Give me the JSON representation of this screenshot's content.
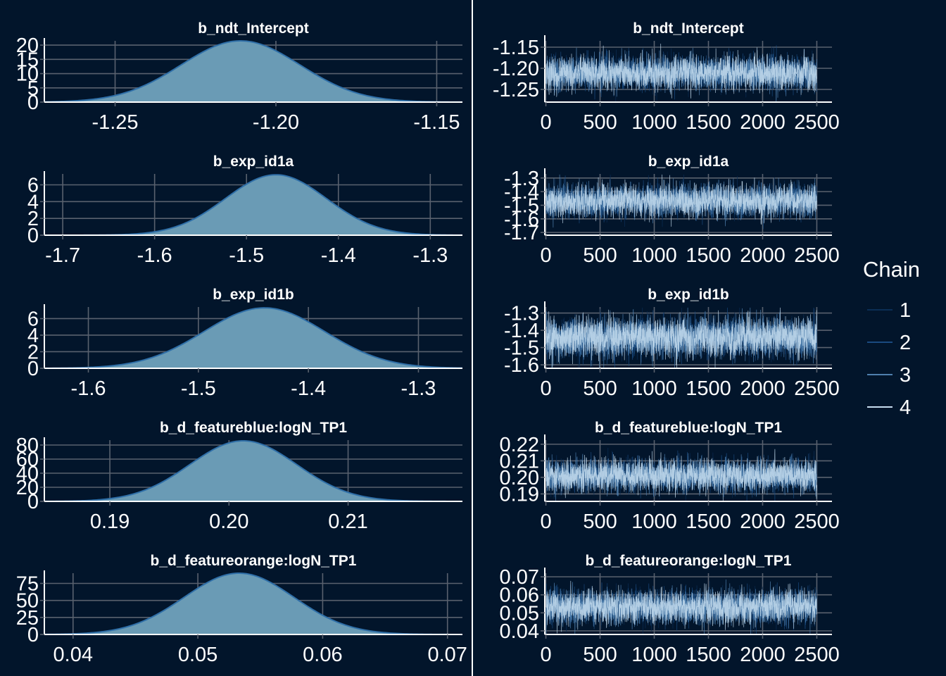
{
  "colors": {
    "background": "#02152b",
    "density_fill": "#6a9bb5",
    "density_line": "#2f6fa8",
    "divider": "#ffffff",
    "grid": "#59616e",
    "text": "#ffffff",
    "chains": [
      "#0b2e55",
      "#1a4a80",
      "#4f7fae",
      "#c7def0"
    ]
  },
  "legend": {
    "title": "Chain",
    "items": [
      {
        "label": "1",
        "color": "#0b2e55"
      },
      {
        "label": "2",
        "color": "#1a4a80"
      },
      {
        "label": "3",
        "color": "#4f7fae"
      },
      {
        "label": "4",
        "color": "#c7def0"
      }
    ]
  },
  "chart_data": [
    {
      "type": "area",
      "panel": "density",
      "title": "b_ndt_Intercept",
      "xticks": [
        -1.25,
        -1.2,
        -1.15
      ],
      "xtick_labels": [
        "-1.25",
        "-1.20",
        "-1.15"
      ],
      "yticks": [
        0,
        5,
        10,
        15,
        20
      ],
      "xlim": [
        -1.272,
        -1.142
      ],
      "ylim": [
        0,
        21.5
      ],
      "mean": -1.211,
      "sd": 0.0185,
      "peak": 21.5
    },
    {
      "type": "line",
      "panel": "trace",
      "title": "b_ndt_Intercept",
      "xticks": [
        0,
        500,
        1000,
        1500,
        2000,
        2500
      ],
      "xtick_labels": [
        "0",
        "500",
        "1000",
        "1500",
        "2000",
        "2500"
      ],
      "yticks": [
        -1.25,
        -1.2,
        -1.15
      ],
      "ytick_labels": [
        "-1.25",
        "-1.20",
        "-1.15"
      ],
      "xlim": [
        -10,
        2640
      ],
      "ylim": [
        -1.28,
        -1.135
      ],
      "mean": -1.211,
      "sd": 0.0185,
      "iterations": 2500,
      "chains": 4
    },
    {
      "type": "area",
      "panel": "density",
      "title": "b_exp_id1a",
      "xticks": [
        -1.7,
        -1.6,
        -1.5,
        -1.4,
        -1.3
      ],
      "xtick_labels": [
        "-1.7",
        "-1.6",
        "-1.5",
        "-1.4",
        "-1.3"
      ],
      "yticks": [
        0,
        2,
        4,
        6
      ],
      "xlim": [
        -1.72,
        -1.265
      ],
      "ylim": [
        0,
        7.3
      ],
      "mean": -1.468,
      "sd": 0.055,
      "peak": 7.2
    },
    {
      "type": "line",
      "panel": "trace",
      "title": "b_exp_id1a",
      "xticks": [
        0,
        500,
        1000,
        1500,
        2000,
        2500
      ],
      "xtick_labels": [
        "0",
        "500",
        "1000",
        "1500",
        "2000",
        "2500"
      ],
      "yticks": [
        -1.7,
        -1.6,
        -1.5,
        -1.4,
        -1.3
      ],
      "ytick_labels": [
        "-1.7",
        "-1.6",
        "-1.5",
        "-1.4",
        "-1.3"
      ],
      "xlim": [
        -10,
        2640
      ],
      "ylim": [
        -1.72,
        -1.27
      ],
      "mean": -1.468,
      "sd": 0.055,
      "iterations": 2500,
      "chains": 4
    },
    {
      "type": "area",
      "panel": "density",
      "title": "b_exp_id1b",
      "xticks": [
        -1.6,
        -1.5,
        -1.4,
        -1.3
      ],
      "xtick_labels": [
        "-1.6",
        "-1.5",
        "-1.4",
        "-1.3"
      ],
      "yticks": [
        0,
        2,
        4,
        6
      ],
      "xlim": [
        -1.64,
        -1.26
      ],
      "ylim": [
        0,
        7.4
      ],
      "mean": -1.44,
      "sd": 0.055,
      "peak": 7.3
    },
    {
      "type": "line",
      "panel": "trace",
      "title": "b_exp_id1b",
      "xticks": [
        0,
        500,
        1000,
        1500,
        2000,
        2500
      ],
      "xtick_labels": [
        "0",
        "500",
        "1000",
        "1500",
        "2000",
        "2500"
      ],
      "yticks": [
        -1.6,
        -1.5,
        -1.4,
        -1.3
      ],
      "ytick_labels": [
        "-1.6",
        "-1.5",
        "-1.4",
        "-1.3"
      ],
      "xlim": [
        -10,
        2640
      ],
      "ylim": [
        -1.62,
        -1.265
      ],
      "mean": -1.44,
      "sd": 0.055,
      "iterations": 2500,
      "chains": 4
    },
    {
      "type": "area",
      "panel": "density",
      "title": "b_d_featureblue:logN_TP1",
      "xticks": [
        0.19,
        0.2,
        0.21
      ],
      "xtick_labels": [
        "0.19",
        "0.20",
        "0.21"
      ],
      "yticks": [
        0,
        20,
        40,
        60,
        80
      ],
      "xlim": [
        0.1845,
        0.2196
      ],
      "ylim": [
        0,
        87
      ],
      "mean": 0.2012,
      "sd": 0.0045,
      "peak": 86
    },
    {
      "type": "line",
      "panel": "trace",
      "title": "b_d_featureblue:logN_TP1",
      "xticks": [
        0,
        500,
        1000,
        1500,
        2000,
        2500
      ],
      "xtick_labels": [
        "0",
        "500",
        "1000",
        "1500",
        "2000",
        "2500"
      ],
      "yticks": [
        0.19,
        0.2,
        0.21,
        0.22
      ],
      "ytick_labels": [
        "0.19",
        "0.20",
        "0.21",
        "0.22"
      ],
      "xlim": [
        -10,
        2640
      ],
      "ylim": [
        0.1855,
        0.2225
      ],
      "mean": 0.2012,
      "sd": 0.0045,
      "iterations": 2500,
      "chains": 4
    },
    {
      "type": "area",
      "panel": "density",
      "title": "b_d_featureorange:logN_TP1",
      "xticks": [
        0.04,
        0.05,
        0.06,
        0.07
      ],
      "xtick_labels": [
        "0.04",
        "0.05",
        "0.06",
        "0.07"
      ],
      "yticks": [
        0,
        25,
        50,
        75
      ],
      "xlim": [
        0.0377,
        0.0712
      ],
      "ylim": [
        0,
        90
      ],
      "mean": 0.0533,
      "sd": 0.0044,
      "peak": 90
    },
    {
      "type": "line",
      "panel": "trace",
      "title": "b_d_featureorange:logN_TP1",
      "xticks": [
        0,
        500,
        1000,
        1500,
        2000,
        2500
      ],
      "xtick_labels": [
        "0",
        "500",
        "1000",
        "1500",
        "2000",
        "2500"
      ],
      "yticks": [
        0.04,
        0.05,
        0.06,
        0.07
      ],
      "ytick_labels": [
        "0.04",
        "0.05",
        "0.06",
        "0.07"
      ],
      "xlim": [
        -10,
        2640
      ],
      "ylim": [
        0.038,
        0.072
      ],
      "mean": 0.0533,
      "sd": 0.0044,
      "iterations": 2500,
      "chains": 4
    }
  ]
}
